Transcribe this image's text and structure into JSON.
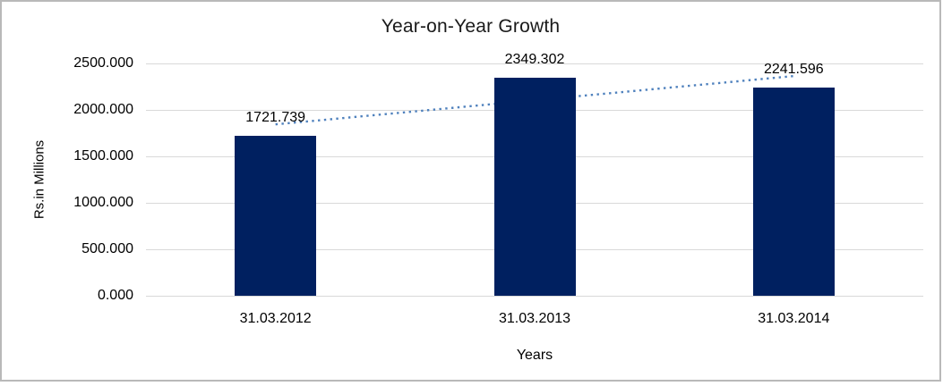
{
  "chart_data": {
    "type": "bar",
    "title": "Year-on-Year Growth",
    "categories": [
      "31.03.2012",
      "31.03.2013",
      "31.03.2014"
    ],
    "values": [
      1721.739,
      2349.302,
      2241.596
    ],
    "data_labels": [
      "1721.739",
      "2349.302",
      "2241.596"
    ],
    "xlabel": "Years",
    "ylabel": "Rs.in Millions",
    "ylim": [
      0,
      2500
    ],
    "ytick_step": 500,
    "ytick_labels": [
      "0.000",
      "500.000",
      "1000.000",
      "1500.000",
      "2000.000",
      "2500.000"
    ],
    "grid": true,
    "legend": "none",
    "trendline": {
      "type": "linear",
      "style": "dotted",
      "fit_values_at_first_last": [
        1844.284,
        2364.141
      ]
    }
  },
  "colors": {
    "bar": "#002060",
    "trendline": "#4f81bd",
    "gridline": "#d9d9d9",
    "frame_border": "#b9b9b9",
    "text": "#000000"
  }
}
